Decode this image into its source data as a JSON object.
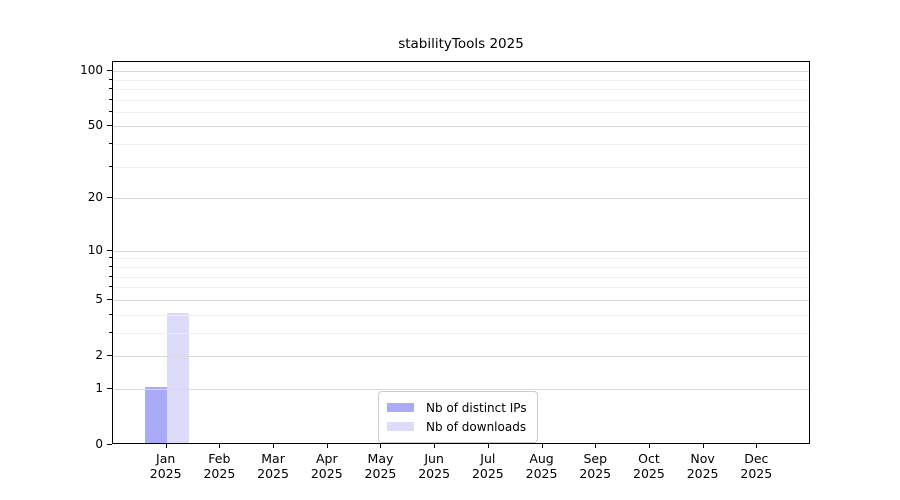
{
  "figure": {
    "background": "#ffffff"
  },
  "chart_data": {
    "type": "bar",
    "title": "stabilityTools 2025",
    "xlabel": "",
    "ylabel": "",
    "scale": "log1p",
    "ylim": [
      0,
      112
    ],
    "y_ticks": [
      0,
      1,
      2,
      5,
      10,
      20,
      50,
      100
    ],
    "y_minor_ticks": [
      3,
      4,
      6,
      7,
      8,
      9,
      30,
      40,
      60,
      70,
      80,
      90
    ],
    "categories": [
      "Jan",
      "Feb",
      "Mar",
      "Apr",
      "May",
      "Jun",
      "Jul",
      "Aug",
      "Sep",
      "Oct",
      "Nov",
      "Dec"
    ],
    "category_sublabel": "2025",
    "series": [
      {
        "name": "Nb of distinct IPs",
        "color": "#abaaf7",
        "values": [
          1,
          0,
          0,
          0,
          0,
          0,
          0,
          0,
          0,
          0,
          0,
          0
        ]
      },
      {
        "name": "Nb of downloads",
        "color": "#dcdcfa",
        "values": [
          4,
          0,
          0,
          0,
          0,
          0,
          0,
          0,
          0,
          0,
          0,
          0
        ]
      }
    ],
    "legend_position": "lower center",
    "grid": true,
    "colors": {
      "major_grid": "#d9d9d9",
      "minor_grid": "#efefef",
      "spine": "#000000",
      "text": "#000000"
    }
  }
}
